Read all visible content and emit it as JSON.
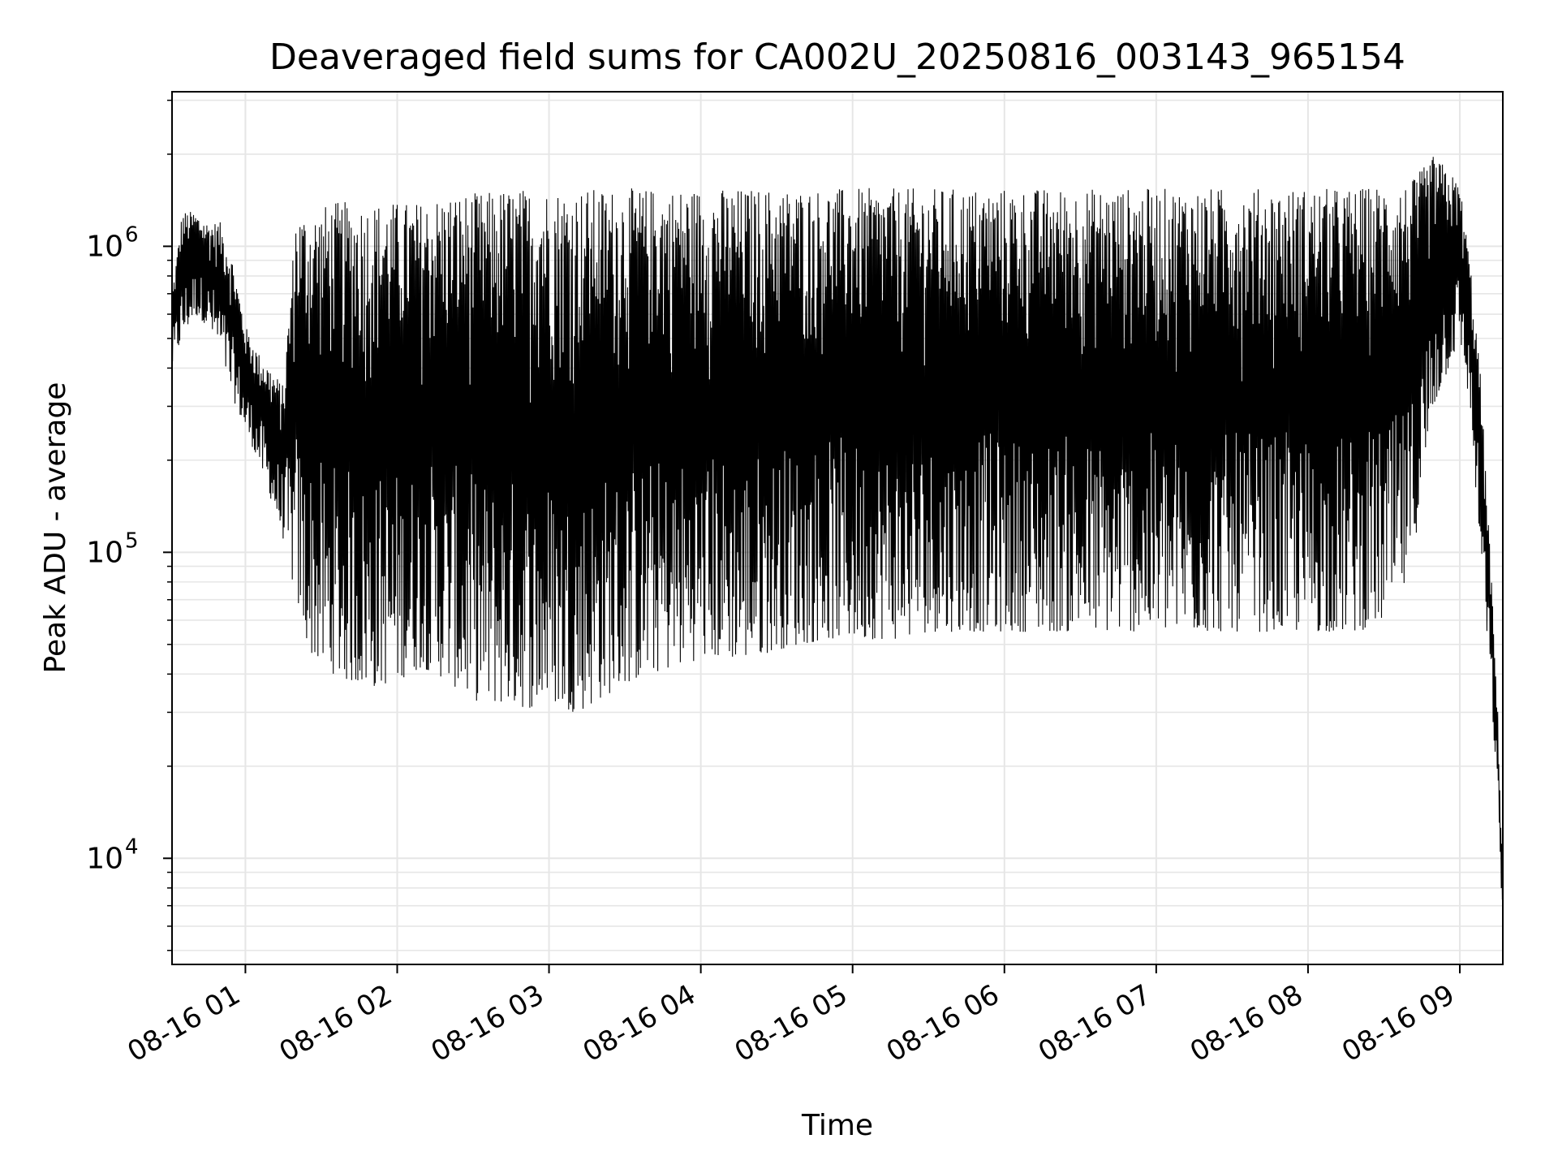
{
  "chart_data": {
    "type": "line",
    "title": "Deaveraged field sums for CA002U_20250816_003143_965154",
    "xlabel": "Time",
    "ylabel": "Peak ADU - average",
    "yscale": "log",
    "grid": true,
    "legend": "none",
    "colors": {
      "line": "#000000",
      "grid": "#e6e6e6",
      "axes": "#000000"
    },
    "xlim": [
      "2025-08-16 00:31",
      "2025-08-16 09:17"
    ],
    "ylim": [
      4500,
      3200000
    ],
    "x_ticks": [
      {
        "value": "2025-08-16 01:00",
        "label": "08-16 01"
      },
      {
        "value": "2025-08-16 02:00",
        "label": "08-16 02"
      },
      {
        "value": "2025-08-16 03:00",
        "label": "08-16 03"
      },
      {
        "value": "2025-08-16 04:00",
        "label": "08-16 04"
      },
      {
        "value": "2025-08-16 05:00",
        "label": "08-16 05"
      },
      {
        "value": "2025-08-16 06:00",
        "label": "08-16 06"
      },
      {
        "value": "2025-08-16 07:00",
        "label": "08-16 07"
      },
      {
        "value": "2025-08-16 08:00",
        "label": "08-16 08"
      },
      {
        "value": "2025-08-16 09:00",
        "label": "08-16 09"
      }
    ],
    "y_ticks": [
      {
        "value": 10000,
        "base": "10",
        "exp": "4"
      },
      {
        "value": 100000,
        "base": "10",
        "exp": "5"
      },
      {
        "value": 1000000,
        "base": "10",
        "exp": "6"
      }
    ],
    "series": [
      {
        "x": [
          "2025-08-16 00:31",
          "2025-08-16 00:35",
          "2025-08-16 00:40",
          "2025-08-16 00:45",
          "2025-08-16 00:50",
          "2025-08-16 00:55",
          "2025-08-16 01:00",
          "2025-08-16 01:05",
          "2025-08-16 01:10",
          "2025-08-16 01:15",
          "2025-08-16 01:20",
          "2025-08-16 01:25",
          "2025-08-16 01:30",
          "2025-08-16 01:35",
          "2025-08-16 01:40",
          "2025-08-16 01:45",
          "2025-08-16 01:50",
          "2025-08-16 01:55",
          "2025-08-16 02:00",
          "2025-08-16 02:05",
          "2025-08-16 02:10",
          "2025-08-16 02:15",
          "2025-08-16 02:20",
          "2025-08-16 02:25",
          "2025-08-16 02:30",
          "2025-08-16 02:35",
          "2025-08-16 02:40",
          "2025-08-16 02:45",
          "2025-08-16 02:50",
          "2025-08-16 02:55",
          "2025-08-16 03:00",
          "2025-08-16 03:05",
          "2025-08-16 03:10",
          "2025-08-16 03:15",
          "2025-08-16 03:20",
          "2025-08-16 03:25",
          "2025-08-16 03:30",
          "2025-08-16 03:40",
          "2025-08-16 03:50",
          "2025-08-16 04:00",
          "2025-08-16 04:10",
          "2025-08-16 04:20",
          "2025-08-16 04:30",
          "2025-08-16 04:40",
          "2025-08-16 04:50",
          "2025-08-16 05:00",
          "2025-08-16 05:10",
          "2025-08-16 05:20",
          "2025-08-16 05:30",
          "2025-08-16 05:40",
          "2025-08-16 05:50",
          "2025-08-16 06:00",
          "2025-08-16 06:10",
          "2025-08-16 06:20",
          "2025-08-16 06:30",
          "2025-08-16 06:40",
          "2025-08-16 06:50",
          "2025-08-16 07:00",
          "2025-08-16 07:10",
          "2025-08-16 07:20",
          "2025-08-16 07:30",
          "2025-08-16 07:40",
          "2025-08-16 07:50",
          "2025-08-16 08:00",
          "2025-08-16 08:10",
          "2025-08-16 08:20",
          "2025-08-16 08:30",
          "2025-08-16 08:40",
          "2025-08-16 08:50",
          "2025-08-16 09:00",
          "2025-08-16 09:04",
          "2025-08-16 09:08",
          "2025-08-16 09:12",
          "2025-08-16 09:15",
          "2025-08-16 09:17"
        ],
        "low": [
          400000,
          500000,
          600000,
          550000,
          450000,
          320000,
          250000,
          200000,
          150000,
          110000,
          70000,
          48000,
          42000,
          40000,
          38000,
          37000,
          36000,
          37000,
          38000,
          40000,
          42000,
          40000,
          38000,
          35000,
          33000,
          32000,
          32000,
          32000,
          31000,
          31000,
          33000,
          31000,
          30000,
          31000,
          33000,
          35000,
          37000,
          40000,
          42000,
          45000,
          45000,
          45000,
          48000,
          50000,
          52000,
          52000,
          52000,
          52000,
          55000,
          55000,
          55000,
          55000,
          55000,
          55000,
          55000,
          55000,
          55000,
          55000,
          55000,
          55000,
          55000,
          55000,
          55000,
          55000,
          55000,
          55000,
          60000,
          80000,
          300000,
          500000,
          300000,
          100000,
          40000,
          15000,
          6000
        ],
        "high": [
          700000,
          1300000,
          1300000,
          1200000,
          1200000,
          900000,
          550000,
          450000,
          400000,
          350000,
          1300000,
          1300000,
          1350000,
          1400000,
          1400000,
          1400000,
          1400000,
          1400000,
          1400000,
          1400000,
          1400000,
          1450000,
          1500000,
          1500000,
          1500000,
          1500000,
          1550000,
          1550000,
          1550000,
          1550000,
          1550000,
          1550000,
          1550000,
          1550000,
          1550000,
          1550000,
          1550000,
          1550000,
          1550000,
          1550000,
          1550000,
          1550000,
          1550000,
          1550000,
          1550000,
          1550000,
          1550000,
          1550000,
          1550000,
          1550000,
          1550000,
          1550000,
          1550000,
          1550000,
          1550000,
          1550000,
          1550000,
          1550000,
          1550000,
          1550000,
          1550000,
          1550000,
          1550000,
          1550000,
          1550000,
          1550000,
          1600000,
          1600000,
          2000000,
          1600000,
          900000,
          400000,
          100000,
          30000,
          9000
        ]
      }
    ]
  }
}
